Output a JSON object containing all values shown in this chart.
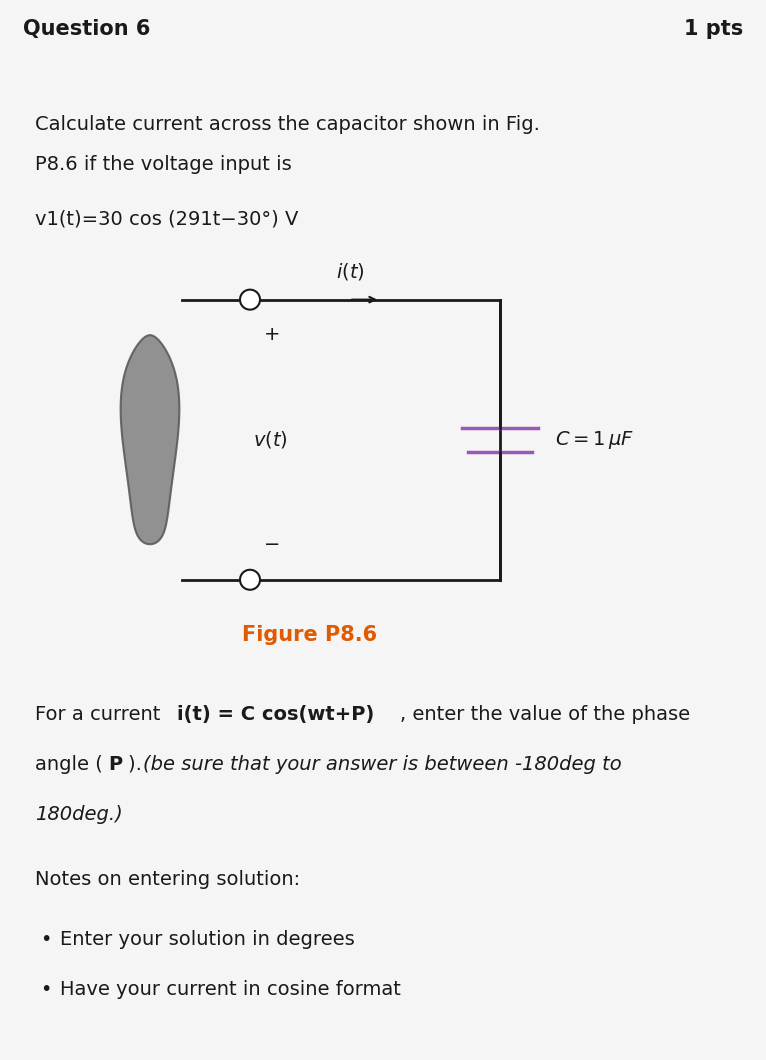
{
  "bg_color": "#f5f5f5",
  "header_bg": "#e8e8e8",
  "header_text": "Question 6",
  "header_pts": "1 pts",
  "header_fontsize": 15,
  "body_bg": "#ffffff",
  "title_line1": "Calculate current across the capacitor shown in Fig.",
  "title_line2": "P8.6 if the voltage input is",
  "voltage_eq": "v1(t)=30 cos (291t−30°) V",
  "figure_label": "Figure P8.6",
  "figure_label_color": "#e05a00",
  "para1_normal": "For a current ",
  "para1_bold": "i(t) = C cos(wt+P)",
  "para1_rest": ", enter the value of the phase\nangle (",
  "para1_P": "P",
  "para1_end": "). ",
  "para1_italic": "(be sure that your answer is between -180deg to\n180deg.)",
  "notes_label": "Notes on entering solution:",
  "bullet1": "Enter your solution in degrees",
  "bullet2": "Have your current in cosine format",
  "text_color": "#1a1a1a",
  "capacitor_color": "#9b59b6",
  "circuit_color": "#1a1a1a",
  "source_color": "#808080"
}
